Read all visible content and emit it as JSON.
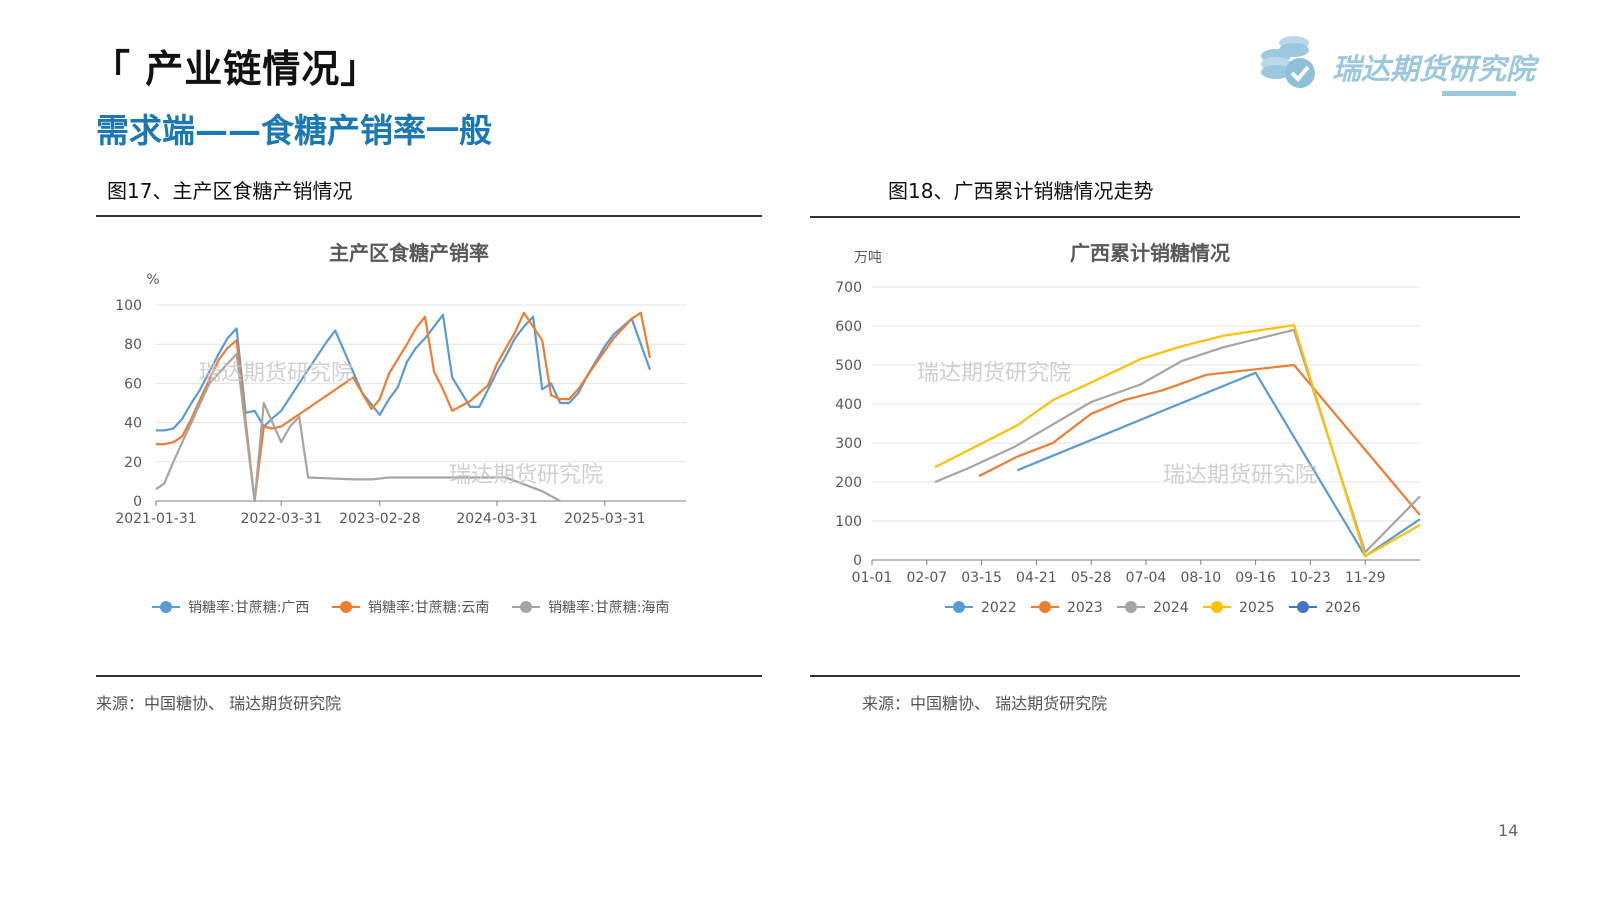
{
  "header": {
    "section_title": "「 产业链情况」",
    "subtitle": "需求端——食糖产销率一般",
    "brand": "瑞达期货研究院"
  },
  "figures": {
    "left_caption": "图17、主产区食糖产销情况",
    "right_caption": "图18、广西累计销糖情况走势",
    "left_source": "来源：中国糖协、 瑞达期货研究院",
    "right_source": "来源：中国糖协、 瑞达期货研究院"
  },
  "watermark": "瑞达期货研究院",
  "page_number": "14",
  "colors": {
    "blue": "#5b9bd5",
    "orange": "#ed7d31",
    "gray": "#a5a5a5",
    "yellow": "#ffc000",
    "darkblue": "#4472c4",
    "accent": "#1a78b4"
  },
  "chart_data": [
    {
      "type": "line",
      "title": "主产区食糖产销率",
      "ylabel": "%",
      "ylim": [
        0,
        100
      ],
      "yticks": [
        0,
        20,
        40,
        60,
        80,
        100
      ],
      "x_range": [
        "2021-01-31",
        "2025-12-31"
      ],
      "xticks": [
        "2021-01-31",
        "2022-03-31",
        "2023-02-28",
        "2024-03-31",
        "2025-03-31"
      ],
      "legend_position": "bottom",
      "series": [
        {
          "name": "销糖率:甘蔗糖:广西",
          "color": "#5b9bd5",
          "points": [
            [
              "2021-01-31",
              36
            ],
            [
              "2021-02-28",
              36
            ],
            [
              "2021-03-31",
              37
            ],
            [
              "2021-04-30",
              42
            ],
            [
              "2021-05-31",
              50
            ],
            [
              "2021-06-30",
              57
            ],
            [
              "2021-07-31",
              66
            ],
            [
              "2021-08-31",
              75
            ],
            [
              "2021-09-30",
              83
            ],
            [
              "2021-10-31",
              88
            ],
            [
              "2021-11-30",
              45
            ],
            [
              "2021-12-31",
              46
            ],
            [
              "2022-01-31",
              38
            ],
            [
              "2022-02-28",
              42
            ],
            [
              "2022-03-31",
              46
            ],
            [
              "2022-06-30",
              67
            ],
            [
              "2022-08-31",
              81
            ],
            [
              "2022-09-30",
              87
            ],
            [
              "2022-12-31",
              55
            ],
            [
              "2023-02-28",
              44
            ],
            [
              "2023-03-31",
              52
            ],
            [
              "2023-04-30",
              58
            ],
            [
              "2023-05-31",
              71
            ],
            [
              "2023-06-30",
              78
            ],
            [
              "2023-07-31",
              83
            ],
            [
              "2023-08-31",
              89
            ],
            [
              "2023-09-30",
              95
            ],
            [
              "2023-10-31",
              63
            ],
            [
              "2023-12-31",
              48
            ],
            [
              "2024-01-31",
              48
            ],
            [
              "2024-03-31",
              66
            ],
            [
              "2024-04-30",
              74
            ],
            [
              "2024-05-31",
              83
            ],
            [
              "2024-06-30",
              89
            ],
            [
              "2024-07-31",
              94
            ],
            [
              "2024-08-31",
              57
            ],
            [
              "2024-09-30",
              60
            ],
            [
              "2024-10-31",
              50
            ],
            [
              "2024-11-30",
              50
            ],
            [
              "2024-12-31",
              55
            ],
            [
              "2025-01-31",
              64
            ],
            [
              "2025-03-31",
              79
            ],
            [
              "2025-04-30",
              85
            ],
            [
              "2025-06-30",
              93
            ],
            [
              "2025-08-31",
              67
            ]
          ]
        },
        {
          "name": "销糖率:甘蔗糖:云南",
          "color": "#ed7d31",
          "points": [
            [
              "2021-01-31",
              29
            ],
            [
              "2021-02-28",
              29
            ],
            [
              "2021-03-31",
              30
            ],
            [
              "2021-04-30",
              33
            ],
            [
              "2021-05-31",
              42
            ],
            [
              "2021-06-30",
              52
            ],
            [
              "2021-07-31",
              62
            ],
            [
              "2021-08-31",
              72
            ],
            [
              "2021-09-30",
              78
            ],
            [
              "2021-10-31",
              82
            ],
            [
              "2021-12-31",
              0
            ],
            [
              "2022-01-31",
              38
            ],
            [
              "2022-02-28",
              37
            ],
            [
              "2022-03-31",
              38
            ],
            [
              "2022-11-30",
              63
            ],
            [
              "2023-01-31",
              47
            ],
            [
              "2023-02-28",
              52
            ],
            [
              "2023-03-31",
              65
            ],
            [
              "2023-05-31",
              80
            ],
            [
              "2023-06-30",
              88
            ],
            [
              "2023-07-31",
              94
            ],
            [
              "2023-08-31",
              66
            ],
            [
              "2023-09-30",
              57
            ],
            [
              "2023-10-31",
              46
            ],
            [
              "2023-12-31",
              51
            ],
            [
              "2024-02-29",
              59
            ],
            [
              "2024-03-31",
              70
            ],
            [
              "2024-05-31",
              86
            ],
            [
              "2024-06-30",
              96
            ],
            [
              "2024-08-31",
              82
            ],
            [
              "2024-09-30",
              54
            ],
            [
              "2024-10-31",
              52
            ],
            [
              "2024-11-30",
              52
            ],
            [
              "2024-12-31",
              57
            ],
            [
              "2025-02-28",
              70
            ],
            [
              "2025-04-30",
              83
            ],
            [
              "2025-06-30",
              93
            ],
            [
              "2025-07-31",
              96
            ],
            [
              "2025-08-31",
              73
            ]
          ]
        },
        {
          "name": "销糖率:甘蔗糖:海南",
          "color": "#a5a5a5",
          "points": [
            [
              "2021-01-31",
              6
            ],
            [
              "2021-02-28",
              9
            ],
            [
              "2021-03-31",
              20
            ],
            [
              "2021-04-30",
              30
            ],
            [
              "2021-05-31",
              40
            ],
            [
              "2021-06-30",
              50
            ],
            [
              "2021-07-31",
              60
            ],
            [
              "2021-09-30",
              70
            ],
            [
              "2021-10-31",
              75
            ],
            [
              "2021-12-31",
              0
            ],
            [
              "2022-01-31",
              50
            ],
            [
              "2022-03-31",
              30
            ],
            [
              "2022-04-30",
              38
            ],
            [
              "2022-05-31",
              43
            ],
            [
              "2022-06-30",
              12
            ],
            [
              "2022-11-30",
              11
            ],
            [
              "2023-01-31",
              11
            ],
            [
              "2023-03-31",
              12
            ],
            [
              "2024-04-30",
              12
            ],
            [
              "2024-08-31",
              5
            ],
            [
              "2024-10-31",
              0
            ]
          ]
        }
      ]
    },
    {
      "type": "line",
      "title": "广西累计销糖情况",
      "ylabel": "万吨",
      "ylim": [
        0,
        700
      ],
      "yticks": [
        0,
        100,
        200,
        300,
        400,
        500,
        600,
        700
      ],
      "xlim": [
        0,
        10
      ],
      "xticks": [
        "01-01",
        "02-07",
        "03-15",
        "04-21",
        "05-28",
        "07-04",
        "08-10",
        "09-16",
        "10-23",
        "11-29"
      ],
      "legend_position": "bottom",
      "series": [
        {
          "name": "2022",
          "color": "#5b9bd5",
          "x": [
            2.65,
            7.0,
            9.0,
            10.0
          ],
          "y": [
            230,
            480,
            10,
            105
          ]
        },
        {
          "name": "2023",
          "color": "#ed7d31",
          "x": [
            1.95,
            2.65,
            3.3,
            4.0,
            4.6,
            5.3,
            6.1,
            7.7,
            10.0
          ],
          "y": [
            215,
            265,
            300,
            375,
            410,
            435,
            475,
            500,
            115
          ]
        },
        {
          "name": "2024",
          "color": "#a5a5a5",
          "x": [
            1.15,
            1.75,
            2.6,
            4.0,
            4.9,
            5.65,
            6.4,
            7.7,
            9.0,
            10.0
          ],
          "y": [
            200,
            235,
            290,
            405,
            450,
            510,
            545,
            590,
            20,
            163
          ]
        },
        {
          "name": "2025",
          "color": "#ffc000",
          "x": [
            1.15,
            1.95,
            2.65,
            3.3,
            4.0,
            4.9,
            5.65,
            6.4,
            7.7,
            9.0,
            10.0
          ],
          "y": [
            238,
            295,
            345,
            410,
            455,
            515,
            548,
            575,
            602,
            10,
            90
          ]
        },
        {
          "name": "2026",
          "color": "#4472c4",
          "x": [],
          "y": []
        }
      ]
    }
  ]
}
